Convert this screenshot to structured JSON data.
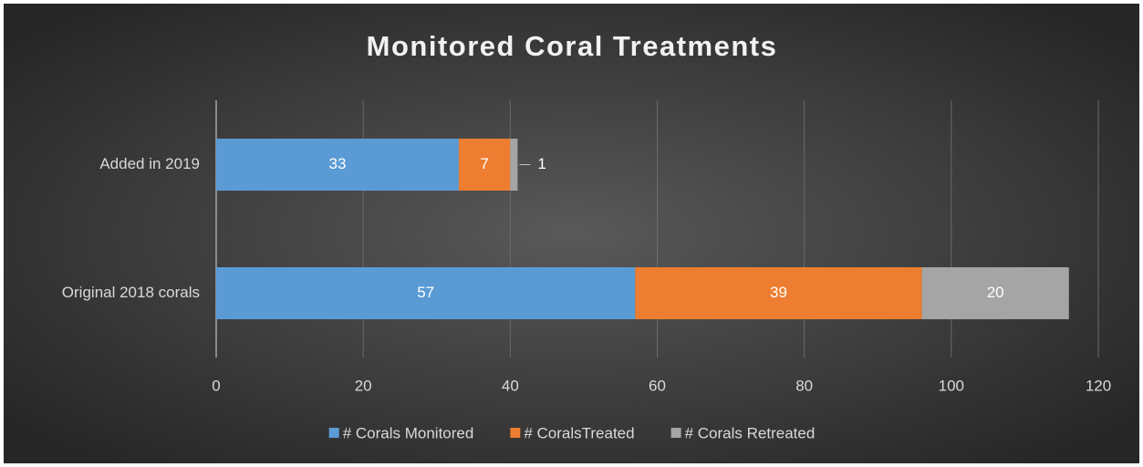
{
  "chart_data": {
    "type": "stacked_barh",
    "title": "Monitored Coral Treatments",
    "categories": [
      "Added in 2019",
      "Original 2018 corals"
    ],
    "series": [
      {
        "name": "# Corals Monitored",
        "color": "#5b9bd5",
        "values": [
          33,
          57
        ]
      },
      {
        "name": "# CoralsTreated",
        "color": "#ed7d31",
        "values": [
          7,
          39
        ]
      },
      {
        "name": "# Corals Retreated",
        "color": "#a5a5a5",
        "values": [
          1,
          20
        ]
      }
    ],
    "xlim": [
      0,
      120
    ],
    "xticks": [
      0,
      20,
      40,
      60,
      80,
      100,
      120
    ],
    "grid": true,
    "legend": "bottom"
  }
}
